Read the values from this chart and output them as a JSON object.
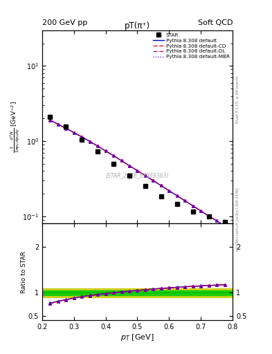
{
  "title_main": "pT(π⁺)",
  "header_left": "200 GeV pp",
  "header_right": "Soft QCD",
  "watermark": "(STAR_2008_S7869363)",
  "right_label_top": "Rivet 3.1.10, ≥ 3M events",
  "right_label_bottom": "mcplots.cern.ch [arXiv:1306.3436]",
  "ylabel_main": "$\\frac{1}{2\\pi p_T}\\frac{d^2N}{dp_T dy}$ [GeV$^{-2}$]",
  "ylabel_ratio": "Ratio to STAR",
  "xlabel": "$p_T$ [GeV]",
  "xlim": [
    0.2,
    0.8
  ],
  "ylim_main": [
    0.08,
    30
  ],
  "ylim_ratio": [
    0.4,
    2.5
  ],
  "ratio_yticks": [
    0.5,
    1.0,
    2.0
  ],
  "star_x": [
    0.225,
    0.275,
    0.325,
    0.375,
    0.425,
    0.475,
    0.525,
    0.575,
    0.625,
    0.675,
    0.725,
    0.775
  ],
  "star_y": [
    2.1,
    1.55,
    1.05,
    0.73,
    0.5,
    0.35,
    0.255,
    0.185,
    0.145,
    0.115,
    0.1,
    0.085
  ],
  "pythia_x": [
    0.225,
    0.25,
    0.275,
    0.3,
    0.325,
    0.35,
    0.375,
    0.4,
    0.425,
    0.45,
    0.475,
    0.5,
    0.525,
    0.55,
    0.575,
    0.6,
    0.625,
    0.65,
    0.675,
    0.7,
    0.725,
    0.75,
    0.775
  ],
  "pythia_default_y": [
    1.9,
    1.68,
    1.48,
    1.3,
    1.14,
    0.99,
    0.86,
    0.74,
    0.64,
    0.55,
    0.47,
    0.405,
    0.348,
    0.298,
    0.256,
    0.219,
    0.188,
    0.161,
    0.138,
    0.118,
    0.101,
    0.087,
    0.074
  ],
  "pythia_cd_y": [
    1.9,
    1.68,
    1.48,
    1.3,
    1.14,
    0.99,
    0.86,
    0.74,
    0.64,
    0.55,
    0.47,
    0.405,
    0.348,
    0.298,
    0.256,
    0.219,
    0.188,
    0.161,
    0.138,
    0.118,
    0.101,
    0.087,
    0.074
  ],
  "pythia_dl_y": [
    1.9,
    1.68,
    1.48,
    1.3,
    1.14,
    0.99,
    0.86,
    0.74,
    0.64,
    0.55,
    0.47,
    0.405,
    0.348,
    0.298,
    0.256,
    0.219,
    0.188,
    0.161,
    0.138,
    0.118,
    0.101,
    0.087,
    0.074
  ],
  "pythia_mbr_y": [
    1.9,
    1.68,
    1.48,
    1.3,
    1.14,
    0.99,
    0.86,
    0.74,
    0.64,
    0.55,
    0.47,
    0.405,
    0.348,
    0.298,
    0.256,
    0.219,
    0.188,
    0.161,
    0.138,
    0.118,
    0.101,
    0.087,
    0.074
  ],
  "ratio_default_y": [
    0.775,
    0.815,
    0.852,
    0.887,
    0.915,
    0.94,
    0.962,
    0.983,
    1.002,
    1.02,
    1.036,
    1.052,
    1.067,
    1.082,
    1.095,
    1.108,
    1.119,
    1.13,
    1.14,
    1.15,
    1.159,
    1.167,
    1.175
  ],
  "ratio_cd_y": [
    0.77,
    0.81,
    0.848,
    0.883,
    0.912,
    0.937,
    0.96,
    0.981,
    1.0,
    1.018,
    1.034,
    1.05,
    1.065,
    1.08,
    1.093,
    1.106,
    1.117,
    1.128,
    1.138,
    1.148,
    1.157,
    1.165,
    1.173
  ],
  "ratio_dl_y": [
    0.77,
    0.81,
    0.848,
    0.883,
    0.912,
    0.937,
    0.96,
    0.981,
    1.0,
    1.018,
    1.034,
    1.05,
    1.065,
    1.08,
    1.093,
    1.106,
    1.117,
    1.128,
    1.138,
    1.148,
    1.157,
    1.165,
    1.173
  ],
  "ratio_mbr_y": [
    0.77,
    0.81,
    0.848,
    0.883,
    0.912,
    0.937,
    0.96,
    0.981,
    1.0,
    1.018,
    1.034,
    1.05,
    1.065,
    1.08,
    1.093,
    1.106,
    1.117,
    1.128,
    1.138,
    1.148,
    1.157,
    1.165,
    1.173
  ],
  "color_default": "#0000cc",
  "color_cd": "#cc0044",
  "color_dl": "#cc0044",
  "color_mbr": "#6600aa",
  "band_green_line": "#00bb00",
  "band_green_fill": "#00cc00",
  "band_yellow_fill": "#cccc00",
  "band_inner": 0.05,
  "band_outer": 0.1,
  "legend_entries": [
    "STAR",
    "Pythia 8.308 default",
    "Pythia 8.308 default-CD",
    "Pythia 8.308 default-DL",
    "Pythia 8.308 default-MBR"
  ],
  "bg_color": "#ffffff"
}
